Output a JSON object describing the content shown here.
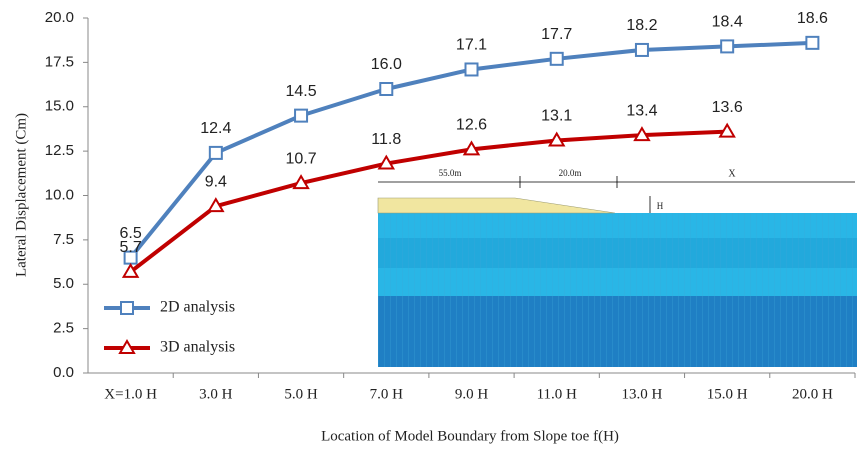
{
  "chart_data": {
    "type": "line",
    "y_label": "Lateral Displacement (Cm)",
    "x_label": "Location of Model Boundary from Slope toe f(H)",
    "categories": [
      "X=1.0 H",
      "3.0 H",
      "5.0 H",
      "7.0 H",
      "9.0 H",
      "11.0 H",
      "13.0 H",
      "15.0 H",
      "20.0 H"
    ],
    "series": [
      {
        "name": "2D analysis",
        "color": "#4f81bd",
        "marker": "square",
        "values": [
          6.5,
          12.4,
          14.5,
          16.0,
          17.1,
          17.7,
          18.2,
          18.4,
          18.6
        ],
        "value_labels": [
          "6.5",
          "12.4",
          "14.5",
          "16.0",
          "17.1",
          "17.7",
          "18.2",
          "18.4",
          "18.6"
        ]
      },
      {
        "name": "3D analysis",
        "color": "#c00000",
        "marker": "triangle",
        "values": [
          5.7,
          9.4,
          10.7,
          11.8,
          12.6,
          13.1,
          13.4,
          13.6,
          null
        ],
        "value_labels": [
          "5.7",
          "9.4",
          "10.7",
          "11.8",
          "12.6",
          "13.1",
          "13.4",
          "13.6",
          null
        ]
      }
    ],
    "ylim": [
      0,
      20
    ],
    "yticks": [
      {
        "value": 0,
        "label": "0.0"
      },
      {
        "value": 2.5,
        "label": "2.5"
      },
      {
        "value": 5,
        "label": "5.0"
      },
      {
        "value": 7.5,
        "label": "7.5"
      },
      {
        "value": 10,
        "label": "10.0"
      },
      {
        "value": 12.5,
        "label": "12.5"
      },
      {
        "value": 15,
        "label": "15.0"
      },
      {
        "value": 17.5,
        "label": "17.5"
      },
      {
        "value": 20,
        "label": "20.0"
      }
    ],
    "grid": false,
    "legend": "lower left",
    "inset_labels": [
      "55.0m",
      "20.0m",
      "X",
      "H"
    ]
  }
}
